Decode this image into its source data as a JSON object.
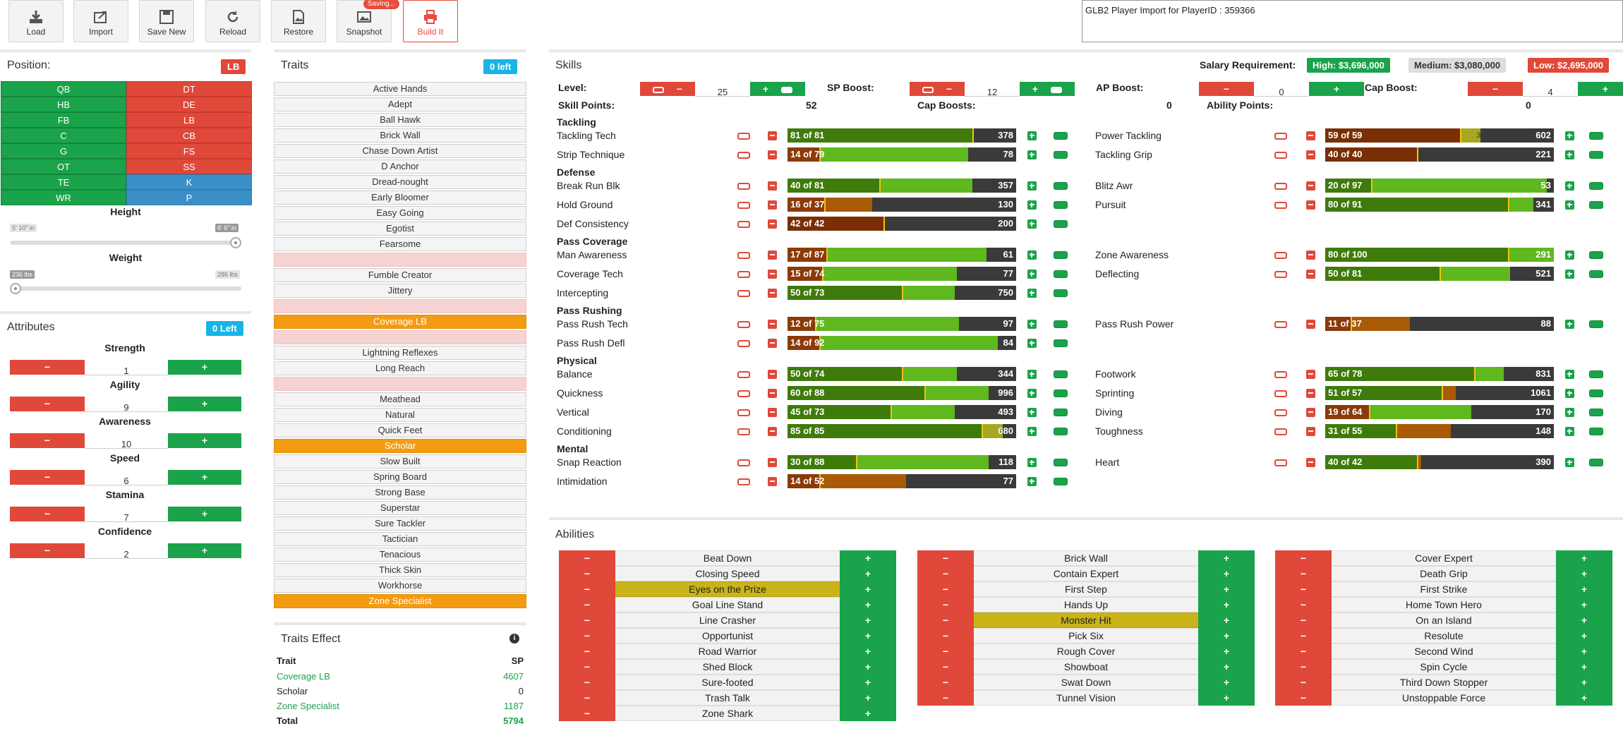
{
  "toolbar": {
    "load": "Load",
    "import": "Import",
    "save_new": "Save New",
    "reload": "Reload",
    "restore": "Restore",
    "snapshot": "Snapshot",
    "snapshot_badge": "Saving...",
    "build_it": "Build It"
  },
  "import_text": "GLB2 Player Import for PlayerID : 359366",
  "position": {
    "title": "Position:",
    "current": "LB",
    "cells": [
      [
        "QB",
        "DT"
      ],
      [
        "HB",
        "DE"
      ],
      [
        "FB",
        "LB"
      ],
      [
        "C",
        "CB"
      ],
      [
        "G",
        "FS"
      ],
      [
        "OT",
        "SS"
      ],
      [
        "TE",
        "K"
      ],
      [
        "WR",
        "P"
      ]
    ],
    "height_label": "Height",
    "height_min": "5' 10\" in",
    "height_max": "6' 6\" in",
    "height_value_fraction": 1.0,
    "weight_label": "Weight",
    "weight_min": "236 lbs",
    "weight_max": "286 lbs",
    "weight_value_fraction": 0.0
  },
  "attributes": {
    "title": "Attributes",
    "left": "0 Left",
    "minus": "−",
    "plus": "+",
    "items": [
      {
        "name": "Strength",
        "value": "1"
      },
      {
        "name": "Agility",
        "value": "9"
      },
      {
        "name": "Awareness",
        "value": "10"
      },
      {
        "name": "Speed",
        "value": "6"
      },
      {
        "name": "Stamina",
        "value": "7"
      },
      {
        "name": "Confidence",
        "value": "2"
      }
    ]
  },
  "traits": {
    "title": "Traits",
    "left": "0 left",
    "items": [
      {
        "name": "Active Hands",
        "state": "normal"
      },
      {
        "name": "Adept",
        "state": "normal"
      },
      {
        "name": "Ball Hawk",
        "state": "normal"
      },
      {
        "name": "Brick Wall",
        "state": "normal"
      },
      {
        "name": "Chase Down Artist",
        "state": "normal"
      },
      {
        "name": "D Anchor",
        "state": "normal"
      },
      {
        "name": "Dread-nought",
        "state": "normal"
      },
      {
        "name": "Early Bloomer",
        "state": "normal"
      },
      {
        "name": "Easy Going",
        "state": "normal"
      },
      {
        "name": "Egotist",
        "state": "normal"
      },
      {
        "name": "Fearsome",
        "state": "normal"
      },
      {
        "name": "",
        "state": "blocked"
      },
      {
        "name": "Fumble Creator",
        "state": "normal"
      },
      {
        "name": "Jittery",
        "state": "normal"
      },
      {
        "name": "",
        "state": "blocked"
      },
      {
        "name": "Coverage LB",
        "state": "selected"
      },
      {
        "name": "",
        "state": "blocked"
      },
      {
        "name": "Lightning Reflexes",
        "state": "normal"
      },
      {
        "name": "Long Reach",
        "state": "normal"
      },
      {
        "name": "",
        "state": "blocked"
      },
      {
        "name": "Meathead",
        "state": "normal"
      },
      {
        "name": "Natural",
        "state": "normal"
      },
      {
        "name": "Quick Feet",
        "state": "normal"
      },
      {
        "name": "Scholar",
        "state": "selected"
      },
      {
        "name": "Slow Built",
        "state": "normal"
      },
      {
        "name": "Spring Board",
        "state": "normal"
      },
      {
        "name": "Strong Base",
        "state": "normal"
      },
      {
        "name": "Superstar",
        "state": "normal"
      },
      {
        "name": "Sure Tackler",
        "state": "normal"
      },
      {
        "name": "Tactician",
        "state": "normal"
      },
      {
        "name": "Tenacious",
        "state": "normal"
      },
      {
        "name": "Thick Skin",
        "state": "normal"
      },
      {
        "name": "Workhorse",
        "state": "normal"
      },
      {
        "name": "Zone Specialist",
        "state": "selected"
      }
    ]
  },
  "traits_effect": {
    "title": "Traits Effect",
    "col_trait": "Trait",
    "col_sp": "SP",
    "rows": [
      {
        "trait": "Coverage LB",
        "sp": "4607",
        "green": true
      },
      {
        "trait": "Scholar",
        "sp": "0",
        "green": false
      },
      {
        "trait": "Zone Specialist",
        "sp": "1187",
        "green": true
      }
    ],
    "total_label": "Total",
    "total": "5794"
  },
  "skills": {
    "title": "Skills",
    "salary_label": "Salary Requirement:",
    "salary_high": "High: $3,696,000",
    "salary_medium": "Medium: $3,080,000",
    "salary_low": "Low: $2,695,000",
    "level_label": "Level:",
    "level": "25",
    "sp_boost_label": "SP Boost:",
    "sp_boost": "12",
    "ap_boost_label": "AP Boost:",
    "ap_boost": "0",
    "cap_boost_label": "Cap Boost:",
    "cap_boost": "4",
    "skill_points_label": "Skill Points:",
    "skill_points": "52",
    "cap_boosts_label": "Cap Boosts:",
    "cap_boosts": "0",
    "ability_points_label": "Ability Points:",
    "ability_points": "0",
    "categories": [
      {
        "name": "Tackling",
        "rows": [
          [
            {
              "name": "Tackling Tech",
              "cur": 81,
              "max": 81,
              "val": "378",
              "sel": "81 of 81"
            },
            {
              "name": "Power Tackling",
              "cur": 59,
              "max": 59,
              "val": "602",
              "sel": "59 of 59",
              "extra": "3"
            }
          ],
          [
            {
              "name": "Strip Technique",
              "cur": 14,
              "max": 79,
              "val": "78",
              "sel": "14 of 79"
            },
            {
              "name": "Tackling Grip",
              "cur": 40,
              "max": 40,
              "val": "221",
              "sel": "40 of 40"
            }
          ]
        ]
      },
      {
        "name": "Defense",
        "rows": [
          [
            {
              "name": "Break Run Blk",
              "cur": 40,
              "max": 81,
              "val": "357",
              "sel": "40 of 81"
            },
            {
              "name": "Blitz Awr",
              "cur": 20,
              "max": 97,
              "val": "53",
              "sel": "20 of 97"
            }
          ],
          [
            {
              "name": "Hold Ground",
              "cur": 16,
              "max": 37,
              "val": "130",
              "sel": "16 of 37"
            },
            {
              "name": "Pursuit",
              "cur": 80,
              "max": 91,
              "val": "341",
              "sel": "80 of 91"
            }
          ],
          [
            {
              "name": "Def Consistency",
              "cur": 42,
              "max": 42,
              "val": "200",
              "sel": "42 of 42"
            },
            null
          ]
        ]
      },
      {
        "name": "Pass Coverage",
        "rows": [
          [
            {
              "name": "Man Awareness",
              "cur": 17,
              "max": 87,
              "val": "61",
              "sel": "17 of 87"
            },
            {
              "name": "Zone Awareness",
              "cur": 80,
              "max": 100,
              "val": "291",
              "sel": "80 of 100"
            }
          ],
          [
            {
              "name": "Coverage Tech",
              "cur": 15,
              "max": 74,
              "val": "77",
              "sel": "15 of 74"
            },
            {
              "name": "Deflecting",
              "cur": 50,
              "max": 81,
              "val": "521",
              "sel": "50 of 81"
            }
          ],
          [
            {
              "name": "Intercepting",
              "cur": 50,
              "max": 73,
              "val": "750",
              "sel": "50 of 73"
            },
            null
          ]
        ]
      },
      {
        "name": "Pass Rushing",
        "rows": [
          [
            {
              "name": "Pass Rush Tech",
              "cur": 12,
              "max": 75,
              "val": "97",
              "sel": "12 of 75"
            },
            {
              "name": "Pass Rush Power",
              "cur": 11,
              "max": 37,
              "val": "88",
              "sel": "11 of 37"
            }
          ],
          [
            {
              "name": "Pass Rush Defl",
              "cur": 14,
              "max": 92,
              "val": "84",
              "sel": "14 of 92"
            },
            null
          ]
        ]
      },
      {
        "name": "Physical",
        "rows": [
          [
            {
              "name": "Balance",
              "cur": 50,
              "max": 74,
              "val": "344",
              "sel": "50 of 74"
            },
            {
              "name": "Footwork",
              "cur": 65,
              "max": 78,
              "val": "831",
              "sel": "65 of 78"
            }
          ],
          [
            {
              "name": "Quickness",
              "cur": 60,
              "max": 88,
              "val": "996",
              "sel": "60 of 88"
            },
            {
              "name": "Sprinting",
              "cur": 51,
              "max": 57,
              "val": "1061",
              "sel": "51 of 57"
            }
          ],
          [
            {
              "name": "Vertical",
              "cur": 45,
              "max": 73,
              "val": "493",
              "sel": "45 of 73"
            },
            {
              "name": "Diving",
              "cur": 19,
              "max": 64,
              "val": "170",
              "sel": "19 of 64"
            }
          ],
          [
            {
              "name": "Conditioning",
              "cur": 85,
              "max": 85,
              "val": "680",
              "sel": "85 of 85",
              "extra": "4"
            },
            {
              "name": "Toughness",
              "cur": 31,
              "max": 55,
              "val": "148",
              "sel": "31 of 55"
            }
          ]
        ]
      },
      {
        "name": "Mental",
        "rows": [
          [
            {
              "name": "Snap Reaction",
              "cur": 30,
              "max": 88,
              "val": "118",
              "sel": "30 of 88"
            },
            {
              "name": "Heart",
              "cur": 40,
              "max": 42,
              "val": "390",
              "sel": "40 of 42"
            }
          ],
          [
            {
              "name": "Intimidation",
              "cur": 14,
              "max": 52,
              "val": "77",
              "sel": "14 of 52"
            },
            null
          ]
        ]
      }
    ]
  },
  "abilities": {
    "title": "Abilities",
    "minus": "−",
    "plus": "+",
    "columns": [
      [
        {
          "name": "Beat Down"
        },
        {
          "name": "Closing Speed"
        },
        {
          "name": "Eyes on the Prize",
          "hl": true
        },
        {
          "name": "Goal Line Stand"
        },
        {
          "name": "Line Crasher"
        },
        {
          "name": "Opportunist"
        },
        {
          "name": "Road Warrior"
        },
        {
          "name": "Shed Block"
        },
        {
          "name": "Sure-footed"
        },
        {
          "name": "Trash Talk"
        },
        {
          "name": "Zone Shark"
        }
      ],
      [
        {
          "name": "Brick Wall"
        },
        {
          "name": "Contain Expert"
        },
        {
          "name": "First Step"
        },
        {
          "name": "Hands Up"
        },
        {
          "name": "Monster Hit",
          "hl": true
        },
        {
          "name": "Pick Six"
        },
        {
          "name": "Rough Cover"
        },
        {
          "name": "Showboat"
        },
        {
          "name": "Swat Down"
        },
        {
          "name": "Tunnel Vision"
        }
      ],
      [
        {
          "name": "Cover Expert"
        },
        {
          "name": "Death Grip"
        },
        {
          "name": "First Strike"
        },
        {
          "name": "Home Town Hero"
        },
        {
          "name": "On an Island"
        },
        {
          "name": "Resolute"
        },
        {
          "name": "Second Wind"
        },
        {
          "name": "Spin Cycle"
        },
        {
          "name": "Third Down Stopper"
        },
        {
          "name": "Unstoppable Force"
        }
      ]
    ]
  },
  "colors": {
    "green": "#1aa34a",
    "red": "#e0483a",
    "blue": "#3a8fc7",
    "orange": "#f39c12",
    "gray": "#cfcfcf"
  }
}
